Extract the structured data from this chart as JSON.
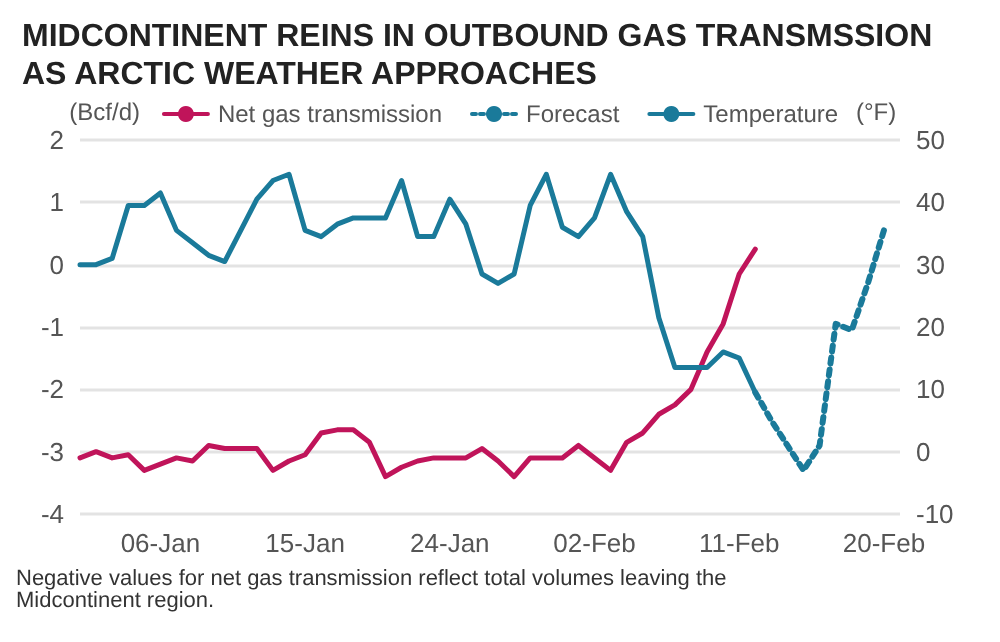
{
  "chart_data": {
    "type": "line",
    "title": "MIDCONTINENT REINS IN OUTBOUND GAS TRANSMSSION AS ARCTIC WEATHER APPROACHES",
    "ylabel": "(Bcf/d)",
    "y2label": "(°F)",
    "annotations": [
      "Negative values for net gas transmission reflect total volumes leaving the Midcontinent region."
    ],
    "xlim": [
      "--01-01",
      "--02-21"
    ],
    "xticks": [
      {
        "value": "--01-06",
        "label": "06-Jan"
      },
      {
        "value": "--01-15",
        "label": "15-Jan"
      },
      {
        "value": "--01-24",
        "label": "24-Jan"
      },
      {
        "value": "--02-02",
        "label": "02-Feb"
      },
      {
        "value": "--02-11",
        "label": "11-Feb"
      },
      {
        "value": "--02-20",
        "label": "20-Feb"
      }
    ],
    "ylim": [
      -4,
      2
    ],
    "yticks": [
      -4,
      -3,
      -2,
      -1,
      0,
      1,
      2
    ],
    "y2lim": [
      -10,
      50
    ],
    "y2ticks": [
      -10,
      0,
      10,
      20,
      30,
      40,
      50
    ],
    "grid": "y",
    "legend": "top",
    "marker": "none",
    "line_style": "solid",
    "series": [
      {
        "name": "Net gas transmission",
        "color": "#c0145a",
        "x": [
          "--01-01",
          "--01-02",
          "--01-03",
          "--01-04",
          "--01-05",
          "--01-06",
          "--01-07",
          "--01-08",
          "--01-09",
          "--01-10",
          "--01-11",
          "--01-12",
          "--01-13",
          "--01-14",
          "--01-15",
          "--01-16",
          "--01-17",
          "--01-18",
          "--01-19",
          "--01-20",
          "--01-21",
          "--01-22",
          "--01-23",
          "--01-24",
          "--01-25",
          "--01-26",
          "--01-27",
          "--01-28",
          "--01-29",
          "--01-30",
          "--01-31",
          "--02-01",
          "--02-02",
          "--02-03",
          "--02-04",
          "--02-05",
          "--02-06",
          "--02-07",
          "--02-08",
          "--02-09",
          "--02-10",
          "--02-11",
          "--02-12"
        ],
        "values": [
          -3.1,
          -3,
          -3.1,
          -3.05,
          -3.3,
          -3.2,
          -3.1,
          -3.15,
          -2.9,
          -2.95,
          -2.95,
          -2.95,
          -3.3,
          -3.15,
          -3.05,
          -2.7,
          -2.65,
          -2.65,
          -2.85,
          -3.4,
          -3.25,
          -3.15,
          -3.1,
          -3.1,
          -3.1,
          -2.95,
          -3.15,
          -3.4,
          -3.1,
          -3.1,
          -3.1,
          -2.9,
          -3.1,
          -3.3,
          -2.85,
          -2.7,
          -2.4,
          -2.25,
          -2,
          -1.4,
          -0.95,
          -0.15,
          0.25
        ]
      },
      {
        "name": "Forecast",
        "color": "#1a7a9a",
        "axis": "y2",
        "line_style": "dotted",
        "x": [
          "--02-12",
          "--02-13",
          "--02-14",
          "--02-15",
          "--02-16",
          "--02-17",
          "--02-18",
          "--02-19",
          "--02-20"
        ],
        "values": [
          9.5,
          5,
          1,
          -3,
          1,
          20.5,
          19.5,
          27,
          35.5
        ]
      },
      {
        "name": "Temperature",
        "color": "#1a7a9a",
        "axis": "y2",
        "x": [
          "--01-01",
          "--01-02",
          "--01-03",
          "--01-04",
          "--01-05",
          "--01-06",
          "--01-07",
          "--01-08",
          "--01-09",
          "--01-10",
          "--01-11",
          "--01-12",
          "--01-13",
          "--01-14",
          "--01-15",
          "--01-16",
          "--01-17",
          "--01-18",
          "--01-19",
          "--01-20",
          "--01-21",
          "--01-22",
          "--01-23",
          "--01-24",
          "--01-25",
          "--01-26",
          "--01-27",
          "--01-28",
          "--01-29",
          "--01-30",
          "--01-31",
          "--02-01",
          "--02-02",
          "--02-03",
          "--02-04",
          "--02-05",
          "--02-06",
          "--02-07",
          "--02-08",
          "--02-09",
          "--02-10",
          "--02-11",
          "--02-12"
        ],
        "values": [
          30,
          30,
          31,
          39.5,
          39.5,
          41.5,
          35.5,
          33.5,
          31.5,
          30.5,
          35.5,
          40.5,
          43.5,
          44.5,
          35.5,
          34.5,
          36.5,
          37.5,
          37.5,
          37.5,
          43.5,
          34.5,
          34.5,
          40.5,
          36.5,
          28.5,
          27,
          28.5,
          39.5,
          44.5,
          36,
          34.5,
          37.5,
          44.5,
          38.5,
          34.5,
          21.5,
          13.5,
          13.5,
          13.5,
          16,
          15,
          9.5
        ]
      }
    ]
  }
}
